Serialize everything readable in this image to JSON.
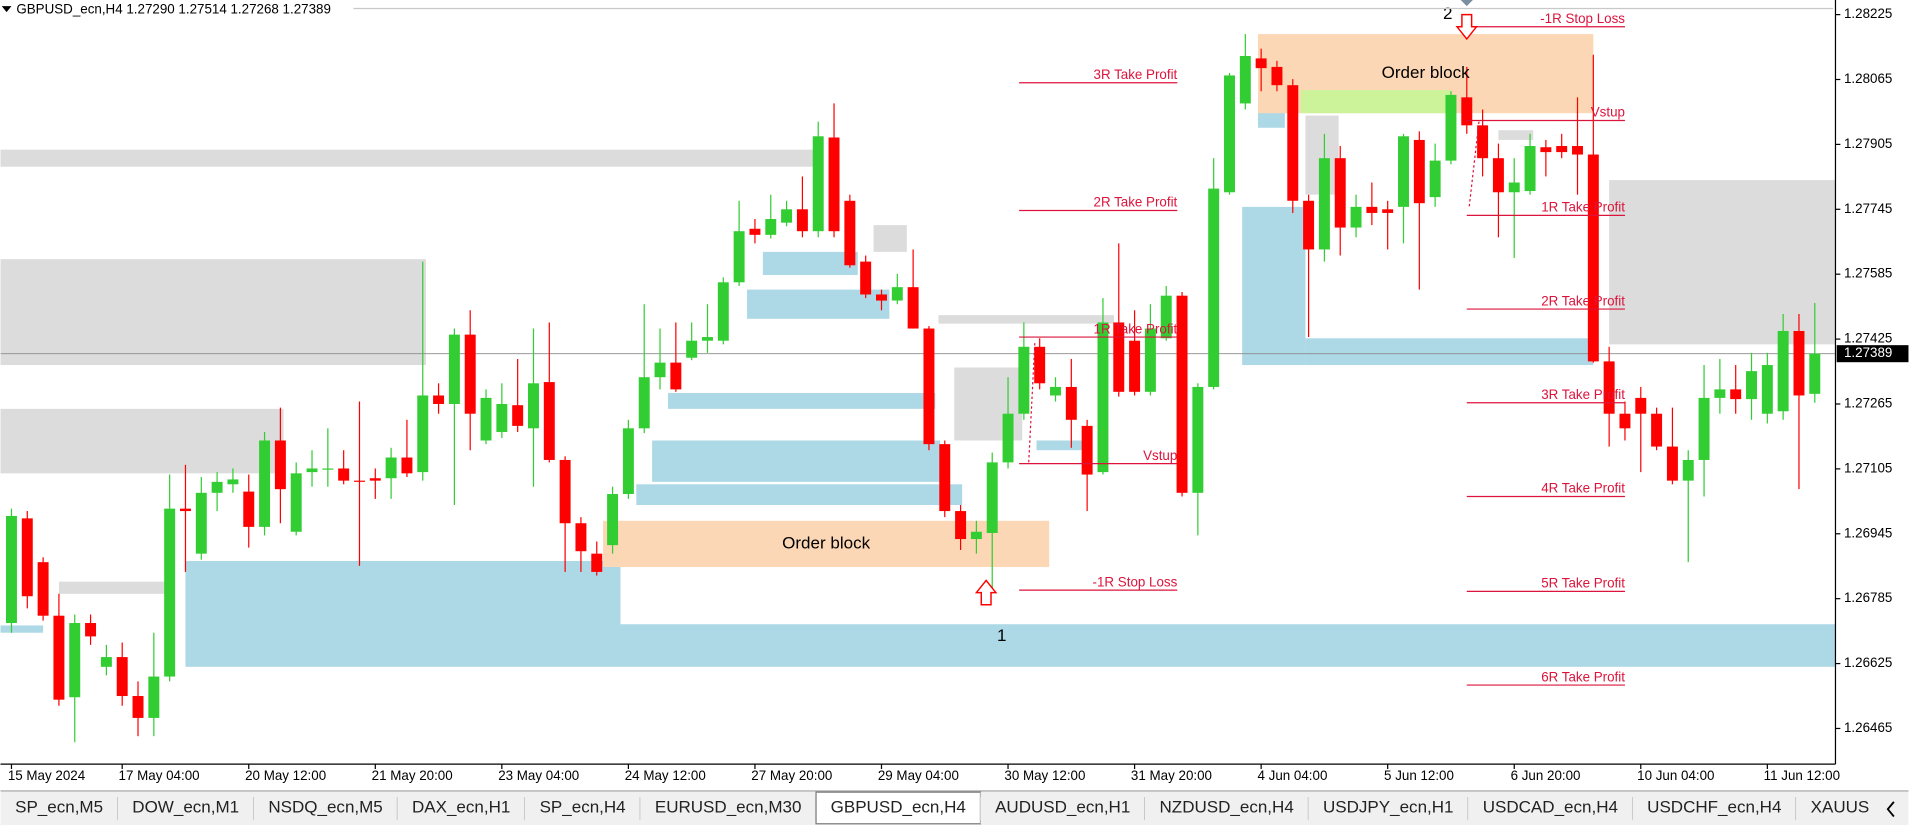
{
  "chart_data": {
    "type": "candlestick",
    "title": "GBPUSD_ecn,H4  1.27290 1.27514 1.27268 1.27389",
    "categories": [
      "15 May 2024",
      null,
      null,
      null,
      null,
      null,
      null,
      "17 May 04:00",
      null,
      null,
      null,
      null,
      null,
      null,
      null,
      "20 May 12:00",
      null,
      null,
      null,
      null,
      null,
      null,
      null,
      "21 May 20:00",
      null,
      null,
      null,
      null,
      null,
      null,
      null,
      "23 May 04:00",
      null,
      null,
      null,
      null,
      null,
      null,
      null,
      "24 May 12:00",
      null,
      null,
      null,
      null,
      null,
      null,
      null,
      "27 May 20:00",
      null,
      null,
      null,
      null,
      null,
      null,
      null,
      "29 May 04:00",
      null,
      null,
      null,
      null,
      null,
      null,
      null,
      "30 May 12:00",
      null,
      null,
      null,
      null,
      null,
      null,
      null,
      "31 May 20:00",
      null,
      null,
      null,
      null,
      null,
      null,
      null,
      "4 Jun 04:00",
      null,
      null,
      null,
      null,
      null,
      null,
      null,
      "5 Jun 12:00",
      null,
      null,
      null,
      null,
      null,
      null,
      null,
      "6 Jun 20:00",
      null,
      null,
      null,
      null,
      null,
      null,
      null,
      "10 Jun 04:00",
      null,
      null,
      null,
      null,
      null,
      null,
      null,
      "11 Jun 12:00",
      null,
      null,
      null
    ],
    "open": [
      1.26725,
      1.26983,
      1.26875,
      1.26743,
      1.26542,
      1.26725,
      1.26617,
      1.26641,
      1.26545,
      1.26491,
      1.26593,
      1.27007,
      1.26896,
      1.27046,
      1.27067,
      1.27049,
      1.26962,
      1.27175,
      1.2695,
      1.27097,
      1.27103,
      1.27106,
      1.27076,
      1.27082,
      1.27082,
      1.27133,
      1.27097,
      1.27286,
      1.27265,
      1.27436,
      1.27175,
      1.27196,
      1.27262,
      1.27205,
      1.27319,
      1.27127,
      1.26971,
      1.26896,
      1.26917,
      1.27043,
      1.27205,
      1.27331,
      1.27367,
      1.27379,
      1.27421,
      1.27421,
      1.27565,
      1.27697,
      1.27682,
      1.27712,
      1.27745,
      1.27691,
      1.27922,
      1.27766,
      1.27616,
      1.27535,
      1.2752,
      1.27553,
      1.27451,
      1.27166,
      1.27001,
      1.26932,
      1.26947,
      1.27121,
      1.27241,
      1.27406,
      1.27286,
      1.27307,
      1.27211,
      1.27097,
      1.27466,
      1.27421,
      1.27295,
      1.27427,
      1.27532,
      1.27046,
      1.27307,
      1.27787,
      1.28006,
      1.28117,
      1.28096,
      1.28051,
      1.27766,
      1.27646,
      1.27871,
      1.277,
      1.27751,
      1.27745,
      1.27751,
      1.27916,
      1.27775,
      1.27865,
      1.28021,
      1.27952,
      1.27871,
      1.27787,
      1.2779,
      1.27898,
      1.27901,
      1.27901,
      1.2788,
      1.2737,
      1.27241,
      1.2728,
      1.27241,
      1.2716,
      1.27076,
      1.27127,
      1.2728,
      1.27301,
      1.27277,
      1.27241,
      1.27247,
      1.27445,
      1.2729
    ],
    "high": [
      1.27007,
      1.27001,
      1.26887,
      1.26797,
      1.26746,
      1.26746,
      1.26671,
      1.26677,
      1.26581,
      1.26701,
      1.27091,
      1.27115,
      1.27085,
      1.27097,
      1.27106,
      1.27091,
      1.27196,
      1.27256,
      1.27121,
      1.27151,
      1.27205,
      1.27151,
      1.27271,
      1.27106,
      1.27157,
      1.27226,
      1.27616,
      1.27316,
      1.27451,
      1.27496,
      1.27301,
      1.27316,
      1.27376,
      1.27451,
      1.27466,
      1.27136,
      1.26986,
      1.26926,
      1.27061,
      1.27226,
      1.27511,
      1.27451,
      1.27466,
      1.27466,
      1.27511,
      1.27577,
      1.27766,
      1.27721,
      1.27781,
      1.27766,
      1.27826,
      1.27961,
      1.28006,
      1.27781,
      1.27631,
      1.27547,
      1.27586,
      1.27646,
      1.27457,
      1.27175,
      1.27016,
      1.26977,
      1.27145,
      1.27331,
      1.27466,
      1.27427,
      1.27331,
      1.27376,
      1.27226,
      1.27526,
      1.27661,
      1.27496,
      1.27511,
      1.27556,
      1.27541,
      1.27316,
      1.27871,
      1.28081,
      1.28177,
      1.28141,
      1.28111,
      1.28066,
      1.27781,
      1.27931,
      1.27901,
      1.27781,
      1.27811,
      1.27766,
      1.27931,
      1.27937,
      1.27907,
      1.28036,
      1.28096,
      1.27991,
      1.27907,
      1.27871,
      1.27931,
      1.27916,
      1.27931,
      1.28021,
      1.28126,
      1.27406,
      1.27271,
      1.27307,
      1.27256,
      1.27256,
      1.27151,
      1.27361,
      1.27376,
      1.27361,
      1.27391,
      1.27391,
      1.27487,
      1.27487,
      1.27514
    ],
    "low": [
      1.26701,
      1.26761,
      1.26731,
      1.26521,
      1.26431,
      1.26671,
      1.26596,
      1.26521,
      1.26446,
      1.26446,
      1.26581,
      1.26851,
      1.26881,
      1.27001,
      1.27046,
      1.26911,
      1.26941,
      1.26971,
      1.26941,
      1.27061,
      1.27061,
      1.27067,
      1.26866,
      1.27031,
      1.27031,
      1.27085,
      1.27076,
      1.27241,
      1.27016,
      1.27151,
      1.27166,
      1.27181,
      1.27196,
      1.27061,
      1.27121,
      1.26851,
      1.26851,
      1.26842,
      1.26896,
      1.27031,
      1.27193,
      1.27301,
      1.27295,
      1.27373,
      1.27391,
      1.27412,
      1.27556,
      1.27661,
      1.27673,
      1.27703,
      1.27676,
      1.27676,
      1.27676,
      1.27601,
      1.27526,
      1.27496,
      1.27511,
      1.27451,
      1.27151,
      1.26986,
      1.26905,
      1.26896,
      1.26806,
      1.27106,
      1.27226,
      1.27301,
      1.27271,
      1.27157,
      1.27001,
      1.27091,
      1.27283,
      1.27286,
      1.27286,
      1.27421,
      1.27037,
      1.26941,
      1.27301,
      1.27781,
      1.27991,
      1.28036,
      1.28036,
      1.27736,
      1.2743,
      1.27616,
      1.27631,
      1.27676,
      1.27706,
      1.27646,
      1.27661,
      1.27547,
      1.27751,
      1.27856,
      1.27931,
      1.27826,
      1.27676,
      1.27625,
      1.27781,
      1.27826,
      1.27871,
      1.27781,
      1.27367,
      1.2716,
      1.27175,
      1.27097,
      1.27151,
      1.27067,
      1.26875,
      1.27037,
      1.27241,
      1.27241,
      1.27226,
      1.27217,
      1.27226,
      1.27055,
      1.27268
    ],
    "close": [
      1.26989,
      1.26791,
      1.26743,
      1.26536,
      1.26725,
      1.26692,
      1.26641,
      1.26545,
      1.26491,
      1.26593,
      1.27007,
      1.27001,
      1.27046,
      1.27073,
      1.27079,
      1.26962,
      1.27175,
      1.27055,
      1.27094,
      1.27106,
      1.27106,
      1.27076,
      1.27073,
      1.27076,
      1.27133,
      1.27094,
      1.27286,
      1.27265,
      1.27436,
      1.27241,
      1.2728,
      1.27265,
      1.27211,
      1.27316,
      1.27127,
      1.26971,
      1.26902,
      1.26851,
      1.27043,
      1.27205,
      1.27331,
      1.27367,
      1.27301,
      1.27421,
      1.2743,
      1.27565,
      1.27691,
      1.27682,
      1.27721,
      1.27745,
      1.27691,
      1.27925,
      1.27691,
      1.27607,
      1.27535,
      1.2752,
      1.27553,
      1.27451,
      1.27166,
      1.27001,
      1.26932,
      1.2695,
      1.27121,
      1.27241,
      1.27406,
      1.27316,
      1.27307,
      1.27226,
      1.27091,
      1.27466,
      1.27295,
      1.27295,
      1.27451,
      1.27532,
      1.27046,
      1.27307,
      1.27796,
      1.28075,
      1.28123,
      1.28093,
      1.28051,
      1.27766,
      1.27646,
      1.27871,
      1.277,
      1.27751,
      1.27736,
      1.27736,
      1.27925,
      1.2776,
      1.27865,
      1.28027,
      1.27952,
      1.27871,
      1.27787,
      1.27811,
      1.27901,
      1.27886,
      1.27886,
      1.2788,
      1.2737,
      1.27241,
      1.27205,
      1.27241,
      1.2716,
      1.27076,
      1.27127,
      1.2728,
      1.27301,
      1.27277,
      1.27346,
      1.27361,
      1.27445,
      1.27286,
      1.27389
    ],
    "up_color": "#32cd32",
    "down_color": "#ff0000",
    "ylim": [
      1.26377,
      1.28261
    ],
    "yticks": [
      1.28225,
      1.28065,
      1.27905,
      1.27745,
      1.27585,
      1.27425,
      1.27265,
      1.27105,
      1.26945,
      1.26785,
      1.26625,
      1.26465
    ],
    "price_line": 1.27389,
    "zones": [
      {
        "x0": -0.7,
        "x1": 51.2,
        "top": 1.27892,
        "bottom": 1.2785,
        "color": "#dcdcdc"
      },
      {
        "x0": -0.7,
        "x1": 26.2,
        "top": 1.27622,
        "bottom": 1.27361,
        "color": "#dcdcdc"
      },
      {
        "x0": -0.7,
        "x1": 17.2,
        "top": 1.27253,
        "bottom": 1.27094,
        "color": "#dcdcdc"
      },
      {
        "x0": 3,
        "x1": 9.7,
        "top": 1.26827,
        "bottom": 1.26797,
        "color": "#dcdcdc"
      },
      {
        "x0": 54.5,
        "x1": 56.6,
        "top": 1.27706,
        "bottom": 1.2764,
        "color": "#dcdcdc"
      },
      {
        "x0": 58.6,
        "x1": 69.7,
        "top": 1.27484,
        "bottom": 1.27463,
        "color": "#dcdcdc"
      },
      {
        "x0": 59.6,
        "x1": 63.9,
        "top": 1.27355,
        "bottom": 1.27175,
        "color": "#dcdcdc"
      },
      {
        "x0": 81.8,
        "x1": 83.9,
        "top": 1.27976,
        "bottom": 1.27781,
        "color": "#dcdcdc"
      },
      {
        "x0": 94,
        "x1": 96.2,
        "top": 1.2794,
        "bottom": 1.27916,
        "color": "#dcdcdc"
      },
      {
        "x0": 101,
        "x1": 115.3,
        "top": 1.27817,
        "bottom": 1.27412,
        "color": "#dcdcdc"
      },
      {
        "x0": -0.7,
        "x1": 2,
        "top": 1.26719,
        "bottom": 1.26701,
        "color": "#add8e6"
      },
      {
        "x0": 11,
        "x1": 38.5,
        "top": 1.26878,
        "bottom": 1.26617,
        "color": "#add8e6"
      },
      {
        "x0": 38.5,
        "x1": 115.3,
        "top": 1.26722,
        "bottom": 1.26617,
        "color": "#add8e6"
      },
      {
        "x0": 39.5,
        "x1": 60.1,
        "top": 1.27067,
        "bottom": 1.27016,
        "color": "#add8e6"
      },
      {
        "x0": 40.5,
        "x1": 58.7,
        "top": 1.27175,
        "bottom": 1.27073,
        "color": "#add8e6"
      },
      {
        "x0": 41.5,
        "x1": 58.4,
        "top": 1.27292,
        "bottom": 1.27253,
        "color": "#add8e6"
      },
      {
        "x0": 46.5,
        "x1": 55.5,
        "top": 1.27547,
        "bottom": 1.27475,
        "color": "#add8e6"
      },
      {
        "x0": 47.5,
        "x1": 53.5,
        "top": 1.2764,
        "bottom": 1.27583,
        "color": "#add8e6"
      },
      {
        "x0": 64.8,
        "x1": 67.8,
        "top": 1.27175,
        "bottom": 1.27151,
        "color": "#add8e6"
      },
      {
        "x0": 77.8,
        "x1": 81.8,
        "top": 1.27751,
        "bottom": 1.27361,
        "color": "#add8e6"
      },
      {
        "x0": 81.8,
        "x1": 100,
        "top": 1.27427,
        "bottom": 1.27361,
        "color": "#add8e6"
      },
      {
        "x0": 78.8,
        "x1": 80.5,
        "top": 1.27985,
        "bottom": 1.27946,
        "color": "#add8e6"
      },
      {
        "x0": 37.4,
        "x1": 65.6,
        "top": 1.26977,
        "bottom": 1.26863,
        "color": "#fbd7b5",
        "label": "Order block"
      },
      {
        "x0": 78.8,
        "x1": 100,
        "top": 1.28177,
        "bottom": 1.27982,
        "color": "#fbd7b5",
        "label": "Order block"
      },
      {
        "x0": 81.5,
        "x1": 91,
        "top": 1.28039,
        "bottom": 1.27982,
        "color": "#ccf29a"
      }
    ],
    "level_color": "#dc143c",
    "levels": [
      {
        "label": "3R Take Profit",
        "value": 1.28057,
        "x0": 63.7,
        "x1": 73.7
      },
      {
        "label": "2R Take Profit",
        "value": 1.27742,
        "x0": 63.7,
        "x1": 73.7
      },
      {
        "label": "1R Take Profit",
        "value": 1.2743,
        "x0": 63.7,
        "x1": 73.7
      },
      {
        "label": "Vstup",
        "value": 1.27118,
        "x0": 63.7,
        "x1": 73.7
      },
      {
        "label": "-1R Stop Loss",
        "value": 1.26806,
        "x0": 63.7,
        "x1": 73.7
      },
      {
        "label": "-1R Stop Loss",
        "value": 1.28195,
        "x0": 92,
        "x1": 102
      },
      {
        "label": "Vstup",
        "value": 1.27964,
        "x0": 92,
        "x1": 102
      },
      {
        "label": "1R Take Profit",
        "value": 1.2773,
        "x0": 92,
        "x1": 102
      },
      {
        "label": "2R Take Profit",
        "value": 1.27499,
        "x0": 92,
        "x1": 102
      },
      {
        "label": "3R Take Profit",
        "value": 1.27268,
        "x0": 92,
        "x1": 102
      },
      {
        "label": "4R Take Profit",
        "value": 1.27037,
        "x0": 92,
        "x1": 102
      },
      {
        "label": "5R Take Profit",
        "value": 1.26803,
        "x0": 92,
        "x1": 102
      },
      {
        "label": "6R Take Profit",
        "value": 1.26572,
        "x0": 92,
        "x1": 102
      }
    ],
    "markers": [
      {
        "text": "1",
        "x": 62.6,
        "y": 1.26692
      },
      {
        "text": "2",
        "x": 90.8,
        "y": 1.28225
      }
    ],
    "tabs": [
      "SP_ecn,M5",
      "DOW_ecn,M1",
      "NSDQ_ecn,M5",
      "DAX_ecn,H1",
      "SP_ecn,H4",
      "EURUSD_ecn,M30",
      "GBPUSD_ecn,H4",
      "AUDUSD_ecn,H1",
      "NZDUSD_ecn,H4",
      "USDJPY_ecn,H1",
      "USDCAD_ecn,H4",
      "USDCHF_ecn,H4",
      "XAUUS"
    ],
    "active_tab": 6
  }
}
